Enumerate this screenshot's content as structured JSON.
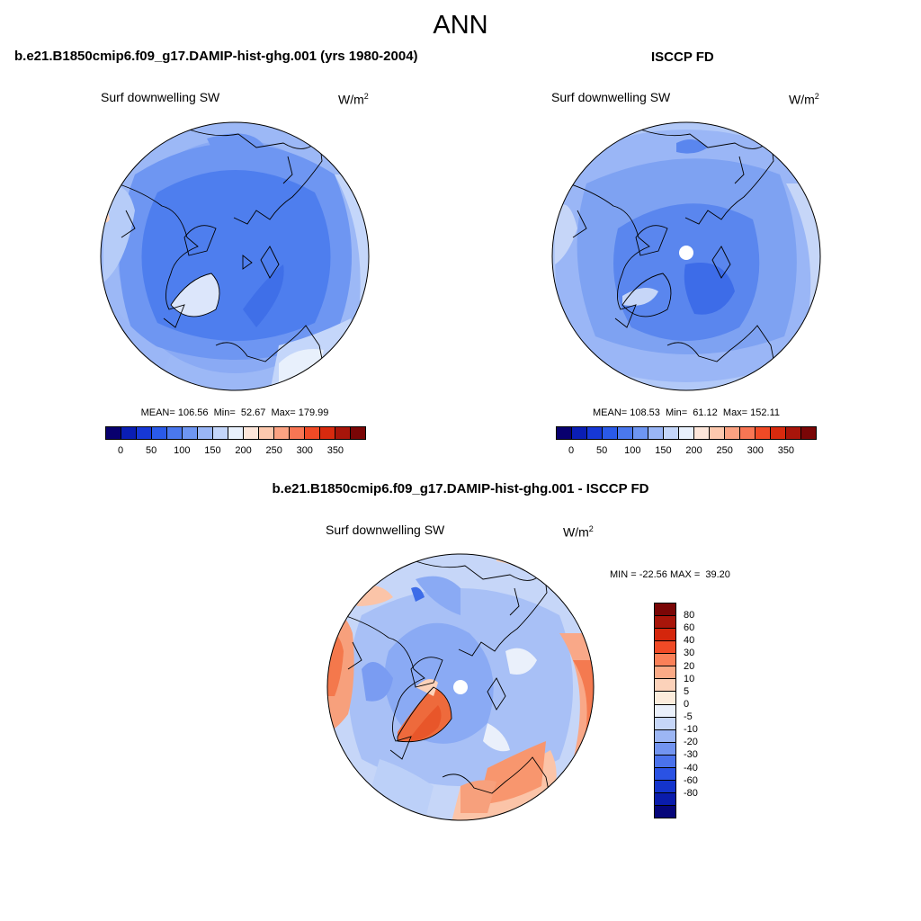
{
  "title": "ANN",
  "panels": {
    "model": {
      "title": "b.e21.B1850cmip6.f09_g17.DAMIP-hist-ghg.001 (yrs 1980-2004)",
      "variable": "Surf downwelling SW",
      "units_base": "W/m",
      "units_exp": "2",
      "stats": "MEAN= 106.56  Min=  52.67  Max= 179.99"
    },
    "obs": {
      "title": "ISCCP FD",
      "variable": "Surf downwelling SW",
      "units_base": "W/m",
      "units_exp": "2",
      "stats": "MEAN= 108.53  Min=  61.12  Max= 152.11"
    },
    "diff": {
      "title": "b.e21.B1850cmip6.f09_g17.DAMIP-hist-ghg.001 - ISCCP FD",
      "variable": "Surf downwelling SW",
      "units_base": "W/m",
      "units_exp": "2",
      "stats": "MIN = -22.56 MAX =  39.20"
    }
  },
  "colorbars": {
    "absolute": {
      "colors": [
        "#08006e",
        "#0a1eb4",
        "#1638d6",
        "#2a5ae8",
        "#4a78ee",
        "#6e96f2",
        "#9ab6f6",
        "#c4d6fa",
        "#e8f0fc",
        "#fde6da",
        "#fcc8ae",
        "#fba282",
        "#f87654",
        "#f04a26",
        "#d82a0e",
        "#a8150a",
        "#7a0606"
      ],
      "labels": [
        "0",
        "50",
        "100",
        "150",
        "200",
        "250",
        "300",
        "350"
      ]
    },
    "difference": {
      "colors": [
        "#7a0606",
        "#a8150a",
        "#d4260c",
        "#f04a26",
        "#fa8058",
        "#fbaa86",
        "#fcd2ba",
        "#fcecdc",
        "#eaf0fb",
        "#c6d6f8",
        "#9cb6f4",
        "#7294f0",
        "#4a72ec",
        "#2a52e4",
        "#1434cc",
        "#0a1cac",
        "#06067a"
      ],
      "labels": [
        "80",
        "60",
        "40",
        "30",
        "20",
        "10",
        "5",
        "0",
        "-5",
        "-10",
        "-20",
        "-30",
        "-40",
        "-60",
        "-80"
      ]
    }
  },
  "map_colors": {
    "land_line": "#000000",
    "model_base": "#4e7eee",
    "obs_base": "#6c95f1",
    "diff_base": "#a9c1f6"
  }
}
